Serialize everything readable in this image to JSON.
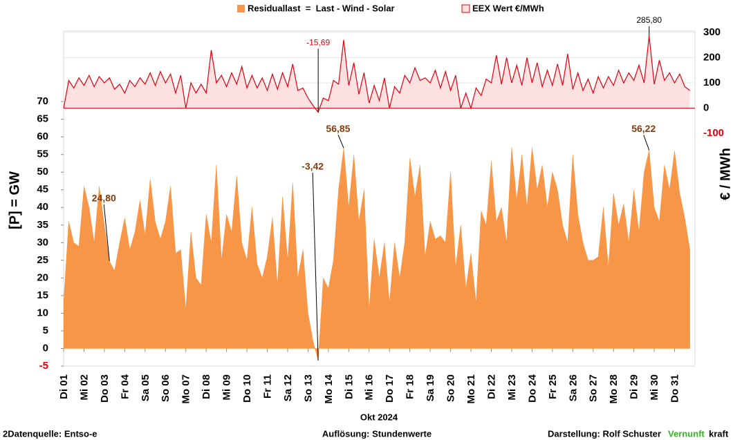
{
  "chart_data": {
    "type": "area",
    "x_label": "Okt 2024",
    "y_label": "[P]  =  GW",
    "y2_label": "€ / MWh",
    "x": [
      0,
      6,
      12,
      18,
      24,
      30,
      36,
      42,
      48,
      54,
      60,
      66,
      72,
      78,
      84,
      90,
      96,
      102,
      108,
      114,
      120,
      126,
      132,
      138,
      144,
      150,
      156,
      162,
      168,
      174,
      180,
      186,
      192,
      198,
      204,
      210,
      216,
      222,
      228,
      234,
      240,
      246,
      252,
      258,
      264,
      270,
      276,
      282,
      288,
      294,
      300,
      306,
      312,
      318,
      324,
      330,
      336,
      342,
      348,
      354,
      360,
      366,
      372,
      378,
      384,
      390,
      396,
      402,
      408,
      414,
      420,
      426,
      432,
      438,
      444,
      450,
      456,
      462,
      468,
      474,
      480,
      486,
      492,
      498,
      504,
      510,
      516,
      522,
      528,
      534,
      540,
      546,
      552,
      558,
      564,
      570,
      576,
      582,
      588,
      594,
      600,
      606,
      612,
      618,
      624,
      630,
      636,
      642,
      648,
      654,
      660,
      666,
      672,
      678,
      684,
      690,
      696,
      702,
      708,
      714,
      720,
      726,
      732,
      738
    ],
    "xlim": [
      0,
      744
    ],
    "xticks": [
      {
        "value": 0,
        "label": "Di 01"
      },
      {
        "value": 24,
        "label": "Mi 02"
      },
      {
        "value": 48,
        "label": "Do 03"
      },
      {
        "value": 72,
        "label": "Fr 04"
      },
      {
        "value": 96,
        "label": "Sa 05"
      },
      {
        "value": 120,
        "label": "So 06"
      },
      {
        "value": 144,
        "label": "Mo 07"
      },
      {
        "value": 168,
        "label": "Di 08"
      },
      {
        "value": 192,
        "label": "Mi 09"
      },
      {
        "value": 216,
        "label": "Do 10"
      },
      {
        "value": 240,
        "label": "Fr 11"
      },
      {
        "value": 264,
        "label": "Sa 12"
      },
      {
        "value": 288,
        "label": "So 13"
      },
      {
        "value": 312,
        "label": "Mo 14"
      },
      {
        "value": 336,
        "label": "Di 15"
      },
      {
        "value": 360,
        "label": "Mi 16"
      },
      {
        "value": 384,
        "label": "Do 17"
      },
      {
        "value": 408,
        "label": "Fr 18"
      },
      {
        "value": 432,
        "label": "Sa 19"
      },
      {
        "value": 456,
        "label": "So 20"
      },
      {
        "value": 480,
        "label": "Mo 21"
      },
      {
        "value": 504,
        "label": "Di 22"
      },
      {
        "value": 528,
        "label": "Mi 23"
      },
      {
        "value": 552,
        "label": "Do 24"
      },
      {
        "value": 576,
        "label": "Fr 25"
      },
      {
        "value": 600,
        "label": "Sa 26"
      },
      {
        "value": 624,
        "label": "So 27"
      },
      {
        "value": 648,
        "label": "Mo 28"
      },
      {
        "value": 672,
        "label": "Di 29"
      },
      {
        "value": 696,
        "label": "Mi 30"
      },
      {
        "value": 720,
        "label": "Do 31"
      }
    ],
    "ylim": [
      -5,
      90
    ],
    "yticks": [
      -5,
      0,
      5,
      10,
      15,
      20,
      25,
      30,
      35,
      40,
      45,
      50,
      55,
      60,
      65,
      70
    ],
    "y2lim": [
      -1020,
      305
    ],
    "y2ticks": [
      -100,
      0,
      100,
      200,
      300
    ],
    "series": [
      {
        "name": "Residuallast  =  Last - Wind - Solar",
        "color": "#f79646",
        "values": [
          13,
          36,
          30,
          29,
          46,
          40,
          30,
          46,
          35,
          24.8,
          22,
          30,
          37,
          28,
          33,
          42,
          32,
          48,
          36,
          31,
          36,
          46,
          27,
          28,
          11,
          33,
          20,
          18,
          38,
          30,
          52,
          25,
          38,
          33,
          49,
          30,
          25,
          40,
          24,
          20,
          26,
          37,
          18,
          43,
          25,
          47,
          20,
          28,
          10,
          2,
          -3.42,
          20,
          17,
          25,
          45,
          56.85,
          40,
          55,
          36,
          45,
          11,
          31,
          20,
          30,
          13,
          30,
          20,
          30,
          54,
          43,
          52,
          26,
          36,
          31,
          32,
          30,
          50,
          23,
          35,
          17,
          27,
          13,
          39,
          35,
          53,
          36,
          40,
          30,
          57,
          42,
          55,
          40,
          57,
          45,
          52,
          40,
          50,
          45,
          35,
          30,
          55,
          38,
          30,
          25,
          25,
          26,
          40,
          23,
          44,
          35,
          41,
          30,
          45,
          33,
          50,
          56.22,
          40,
          36,
          52,
          45,
          56,
          44,
          37,
          28
        ],
        "value_labels": [
          null,
          null,
          null,
          null,
          null,
          null,
          null,
          null,
          null,
          "24,80",
          null,
          null,
          null,
          null,
          null,
          null,
          null,
          null,
          null,
          null,
          null,
          null,
          null,
          null,
          null,
          null,
          null,
          null,
          null,
          null,
          null,
          null,
          null,
          null,
          null,
          null,
          null,
          null,
          null,
          null,
          null,
          null,
          null,
          null,
          null,
          null,
          null,
          null,
          null,
          null,
          "-3,42",
          null,
          null,
          null,
          null,
          "56,85",
          null,
          null,
          null,
          null,
          null,
          null,
          null,
          null,
          null,
          null,
          null,
          null,
          null,
          null,
          null,
          null,
          null,
          null,
          null,
          null,
          null,
          null,
          null,
          null,
          null,
          null,
          null,
          null,
          null,
          null,
          null,
          null,
          null,
          null,
          null,
          null,
          null,
          null,
          null,
          null,
          null,
          null,
          null,
          null,
          null,
          null,
          null,
          null,
          null,
          null,
          null,
          null,
          null,
          null,
          null,
          null,
          null,
          null,
          null,
          "56,22",
          null,
          null,
          null,
          null,
          null,
          null,
          null,
          null
        ]
      },
      {
        "name": "EEX Wert €/MWh",
        "color": "#e0000f",
        "axis": "y2",
        "values": [
          0,
          110,
          80,
          120,
          90,
          130,
          85,
          125,
          100,
          120,
          75,
          95,
          60,
          110,
          85,
          120,
          95,
          140,
          90,
          145,
          100,
          135,
          60,
          130,
          0,
          100,
          60,
          95,
          60,
          230,
          100,
          130,
          85,
          140,
          95,
          165,
          80,
          130,
          80,
          120,
          70,
          135,
          75,
          140,
          85,
          175,
          70,
          80,
          40,
          10,
          -15.69,
          40,
          30,
          110,
          95,
          270,
          90,
          180,
          55,
          140,
          20,
          90,
          30,
          120,
          0,
          85,
          60,
          130,
          100,
          160,
          110,
          120,
          100,
          150,
          80,
          145,
          70,
          130,
          0,
          60,
          0,
          80,
          50,
          115,
          100,
          210,
          95,
          200,
          100,
          170,
          90,
          200,
          100,
          180,
          85,
          150,
          90,
          175,
          90,
          215,
          75,
          140,
          70,
          115,
          60,
          125,
          80,
          125,
          90,
          150,
          100,
          140,
          110,
          170,
          100,
          285.8,
          95,
          190,
          110,
          140,
          100,
          135,
          85,
          70
        ],
        "value_labels": [
          null,
          null,
          null,
          null,
          null,
          null,
          null,
          null,
          null,
          null,
          null,
          null,
          null,
          null,
          null,
          null,
          null,
          null,
          null,
          null,
          null,
          null,
          null,
          null,
          null,
          null,
          null,
          null,
          null,
          null,
          null,
          null,
          null,
          null,
          null,
          null,
          null,
          null,
          null,
          null,
          null,
          null,
          null,
          null,
          null,
          null,
          null,
          null,
          null,
          null,
          "-15,69",
          null,
          null,
          null,
          null,
          null,
          null,
          null,
          null,
          null,
          null,
          null,
          null,
          null,
          null,
          null,
          null,
          null,
          null,
          null,
          null,
          null,
          null,
          null,
          null,
          null,
          null,
          null,
          null,
          null,
          null,
          null,
          null,
          null,
          null,
          null,
          null,
          null,
          null,
          null,
          null,
          null,
          null,
          null,
          null,
          null,
          null,
          null,
          null,
          null,
          null,
          null,
          null,
          null,
          null,
          null,
          null,
          null,
          null,
          null,
          null,
          null,
          null,
          null,
          null,
          "285,80",
          null,
          null,
          null,
          null,
          null,
          null,
          null,
          null
        ]
      }
    ],
    "footer_left": "2Datenquelle: Entso-e",
    "footer_center": "Auflösung: Stundenwerte",
    "footer_right": "Darstellung:  Rolf Schuster",
    "brand_green": "Vernunft",
    "brand_rest": "kraft"
  }
}
